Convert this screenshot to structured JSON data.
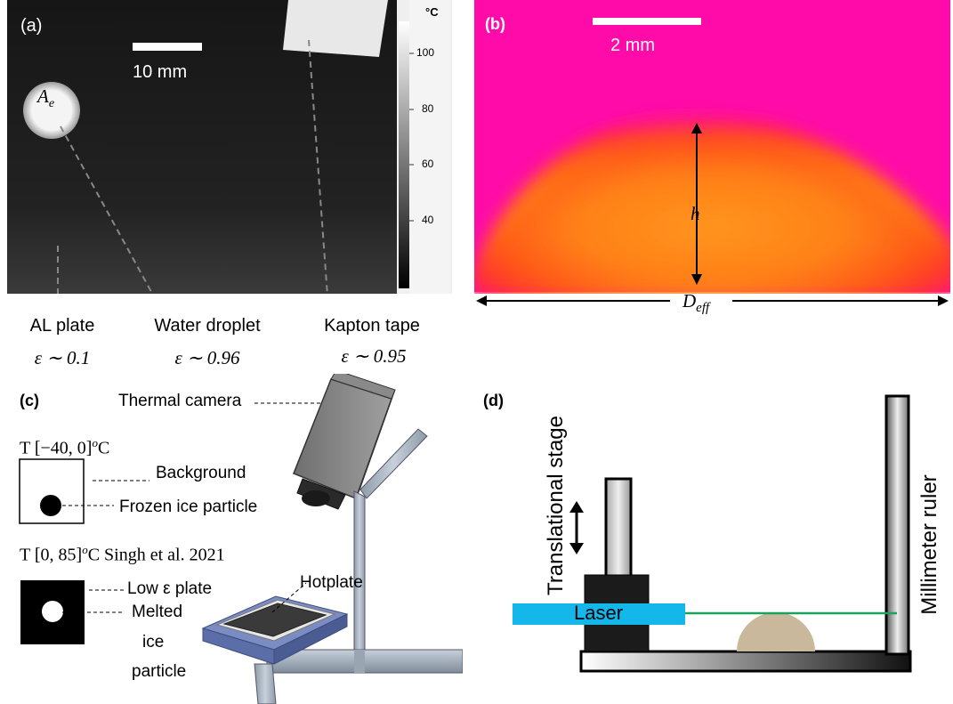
{
  "panel_a": {
    "label": "(a)",
    "scalebar": "10 mm",
    "droplet_symbol": "A",
    "droplet_symbol_sub": "e",
    "colorbar_unit": "°C",
    "colorbar_ticks": [
      "100",
      "80",
      "60",
      "40"
    ],
    "captions": [
      {
        "name": "AL plate",
        "emissivity": "ε ∼ 0.1"
      },
      {
        "name": "Water droplet",
        "emissivity": "ε ∼ 0.96"
      },
      {
        "name": "Kapton tape",
        "emissivity": "ε ∼ 0.95"
      }
    ],
    "colors": {
      "background": "#151515",
      "droplet": "#f2f2f2",
      "tape": "#e8e8e8"
    }
  },
  "panel_b": {
    "label": "(b)",
    "scalebar": "2 mm",
    "height_symbol": "h",
    "diameter_symbol": "D",
    "diameter_sub": "eff",
    "colors": {
      "background": "#ff0ba9",
      "hot": "#ffd21a",
      "edge": "#ff2a2a"
    }
  },
  "panel_c": {
    "label": "(c)",
    "thermal_camera": "Thermal camera",
    "range1": "T [−40, 0]",
    "range1_sup": "o",
    "range1_unit": "C",
    "background": "Background",
    "frozen": "Frozen ice particle",
    "range2": "T [0, 85]",
    "range2_sup": "o",
    "range2_unit": "C Singh et al. 2021",
    "low_plate": "Low ε plate",
    "melted_line1": "Melted",
    "melted_line2": "ice",
    "melted_line3": "particle",
    "hotplate": "Hotplate"
  },
  "panel_d": {
    "label": "(d)",
    "stage": "Translational stage",
    "ruler": "Millimeter ruler",
    "laser": "Laser",
    "colors": {
      "laser": "#14b7ea",
      "beam": "#1aa35b",
      "droplet": "#c9b89c"
    }
  }
}
